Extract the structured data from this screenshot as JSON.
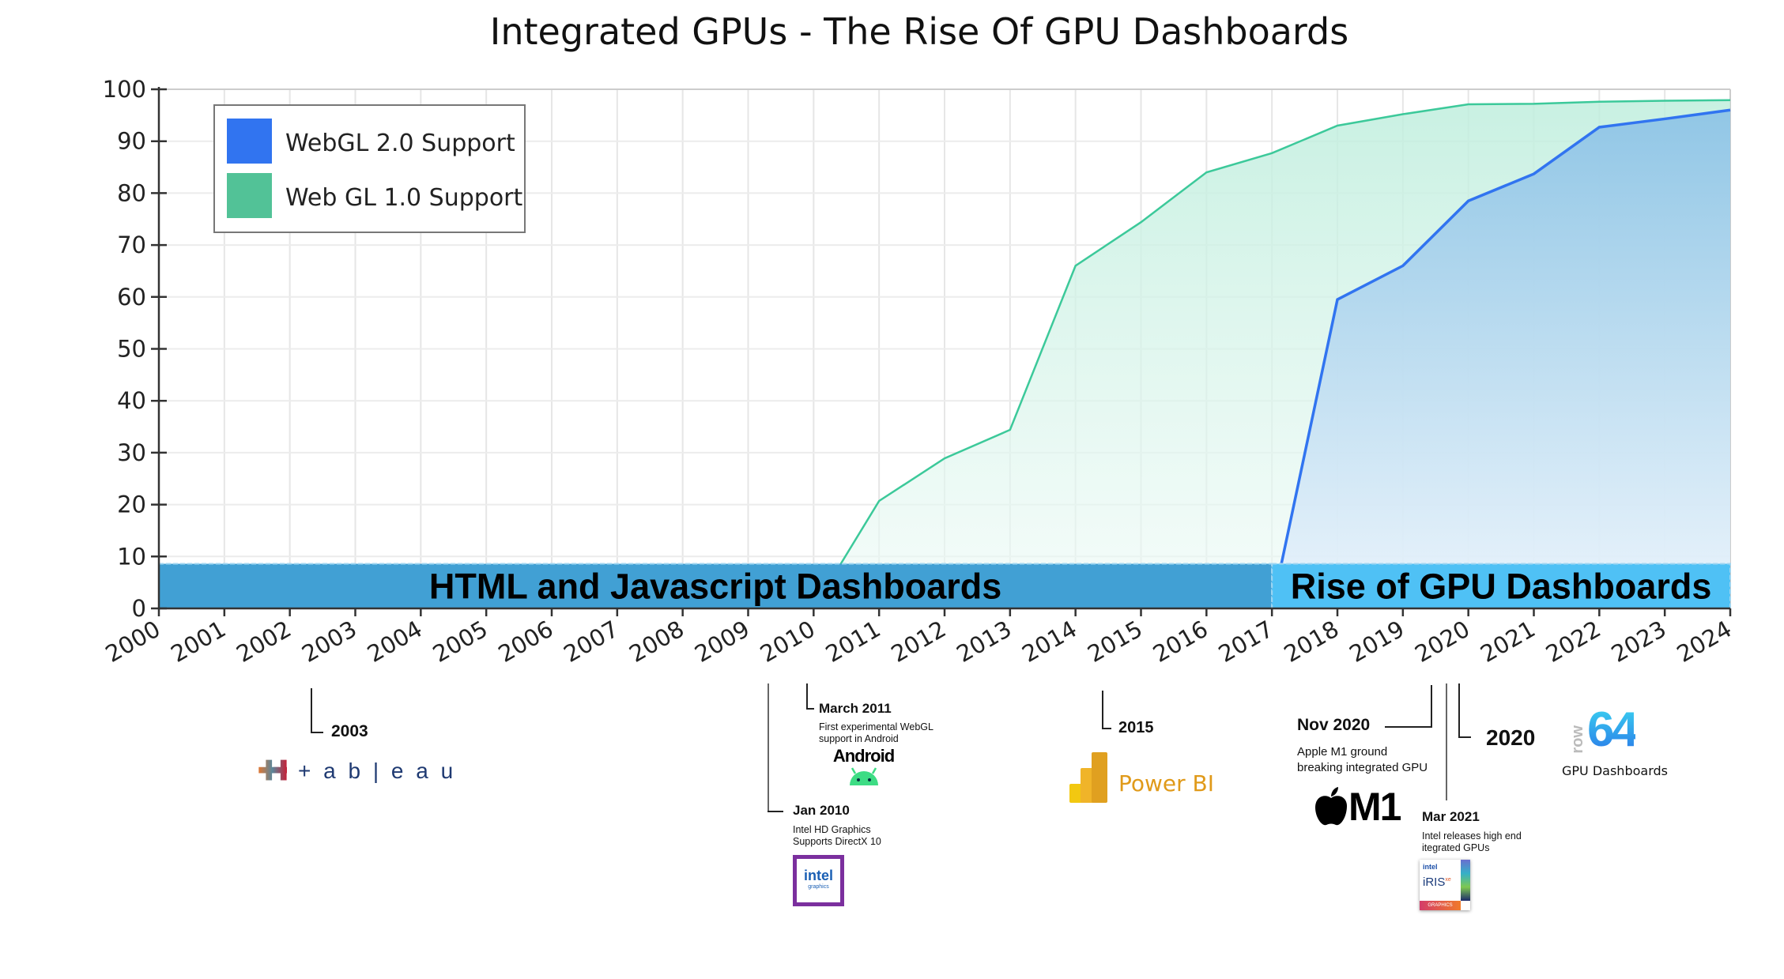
{
  "chart_data": {
    "type": "area",
    "title": "Integrated GPUs - The Rise Of GPU Dashboards",
    "xlabel": "",
    "ylabel": "",
    "x": [
      2000,
      2001,
      2002,
      2003,
      2004,
      2005,
      2006,
      2007,
      2008,
      2009,
      2010,
      2011,
      2012,
      2013,
      2014,
      2015,
      2016,
      2017,
      2018,
      2019,
      2020,
      2021,
      2022,
      2023,
      2024
    ],
    "xlim": [
      2000,
      2024
    ],
    "ylim": [
      0,
      100
    ],
    "yticks": [
      0,
      10,
      20,
      30,
      40,
      50,
      60,
      70,
      80,
      90,
      100
    ],
    "grid": true,
    "legend_position": "top-left",
    "series": [
      {
        "name": "WebGL 2.0 Support",
        "color": "#3174f0",
        "points": [
          [
            2017,
            0
          ],
          [
            2018,
            59.5
          ],
          [
            2019,
            66
          ],
          [
            2020,
            78.5
          ],
          [
            2021,
            83.7
          ],
          [
            2022,
            92.7
          ],
          [
            2023,
            94.3
          ],
          [
            2024,
            96
          ]
        ]
      },
      {
        "name": "Web GL 1.0 Support",
        "color": "#3cc99a",
        "points": [
          [
            2010,
            0
          ],
          [
            2011,
            20.7
          ],
          [
            2012,
            28.9
          ],
          [
            2013,
            34.4
          ],
          [
            2014,
            66
          ],
          [
            2015,
            74.4
          ],
          [
            2016,
            84
          ],
          [
            2017,
            87.7
          ],
          [
            2018,
            93
          ],
          [
            2019,
            95.2
          ],
          [
            2020,
            97.1
          ],
          [
            2021,
            97.2
          ],
          [
            2022,
            97.6
          ],
          [
            2023,
            97.8
          ],
          [
            2024,
            97.9
          ]
        ]
      }
    ],
    "bands": [
      {
        "label": "HTML and Javascript Dashboards",
        "from": 2000,
        "to": 2017,
        "color": "#41a0d4"
      },
      {
        "label": "Rise of GPU Dashboards",
        "from": 2017,
        "to": 2024,
        "color": "#4fc1f5"
      }
    ]
  },
  "annotations": {
    "tableau": {
      "date": "2003",
      "logo_text": "+ a b | e a u"
    },
    "intel": {
      "date": "Jan 2010",
      "desc1": "Intel HD Graphics",
      "desc2": "Supports DirectX 10",
      "logo_text": "intel",
      "logo_sub": "graphics"
    },
    "android": {
      "date": "March 2011",
      "desc1": "First experimental WebGL",
      "desc2": "support in Android",
      "logo_text": "Android"
    },
    "powerbi": {
      "date": "2015",
      "logo_text": "Power BI"
    },
    "apple": {
      "date": "Nov 2020",
      "desc1": "Apple M1 ground",
      "desc2": "breaking integrated GPU",
      "logo_text": "M1"
    },
    "iris": {
      "date": "Mar 2021",
      "desc1": "Intel releases high end",
      "desc2": "itegrated GPUs",
      "logo_brand": "intel",
      "logo_text": "iRIS",
      "logo_sup": "xe",
      "logo_sub": "GRAPHICS"
    },
    "row64": {
      "date": "2020",
      "logo_word": "row",
      "logo_num": "64",
      "caption": "GPU Dashboards"
    }
  }
}
